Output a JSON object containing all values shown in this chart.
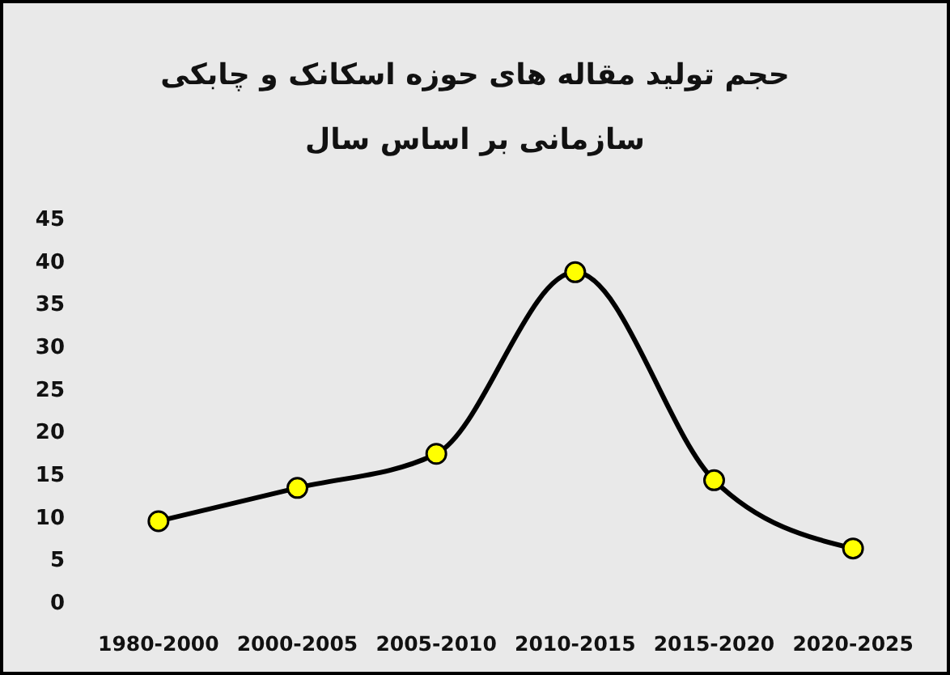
{
  "chart_data": {
    "type": "line",
    "title": "حجم تولید مقاله های حوزه اسکانک و چابکی\nسازمانی بر اساس سال",
    "categories": [
      "1980-2000",
      "2000-2005",
      "2005-2010",
      "2010-2015",
      "2015-2020",
      "2020-2025"
    ],
    "series": [
      {
        "color": "#000000",
        "values": [
          9.5,
          13.4,
          17.4,
          38.7,
          14.3,
          6.3
        ]
      }
    ],
    "ylim": [
      0,
      45
    ],
    "yticks": [
      0,
      5,
      10,
      15,
      20,
      25,
      30,
      35,
      40,
      45
    ],
    "grid": false,
    "marker": "circle",
    "line_style": "solid"
  }
}
